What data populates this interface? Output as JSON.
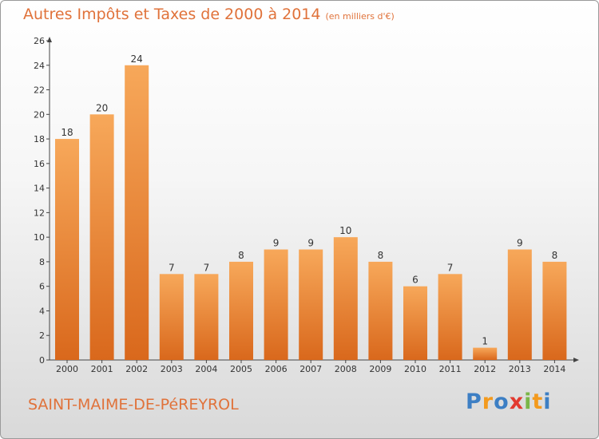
{
  "title": "Autres Impôts et Taxes de 2000 à 2014",
  "unit": "(en milliers d'€)",
  "place": "SAINT-MAIME-DE-PéREYROL",
  "logo": {
    "letters": [
      "P",
      "r",
      "o",
      "x",
      "i",
      "t",
      "i"
    ],
    "colors": [
      "#3d7fc4",
      "#f39a1e",
      "#3d7fc4",
      "#e23a2f",
      "#7ab648",
      "#f39a1e",
      "#3d7fc4"
    ]
  },
  "colors": {
    "bar_light": "#f7a85a",
    "bar_dark": "#d9681c",
    "text_accent": "#e0723a"
  },
  "chart_data": {
    "type": "bar",
    "categories": [
      "2000",
      "2001",
      "2002",
      "2003",
      "2004",
      "2005",
      "2006",
      "2007",
      "2008",
      "2009",
      "2010",
      "2011",
      "2012",
      "2013",
      "2014"
    ],
    "values": [
      18,
      20,
      24,
      7,
      7,
      8,
      9,
      9,
      10,
      8,
      6,
      7,
      1,
      9,
      8
    ],
    "title": "Autres Impôts et Taxes de 2000 à 2014",
    "ylim": [
      0,
      26
    ],
    "yticks": [
      0,
      2,
      4,
      6,
      8,
      10,
      12,
      14,
      16,
      18,
      20,
      22,
      24,
      26
    ],
    "grid": false,
    "legend": "none"
  }
}
